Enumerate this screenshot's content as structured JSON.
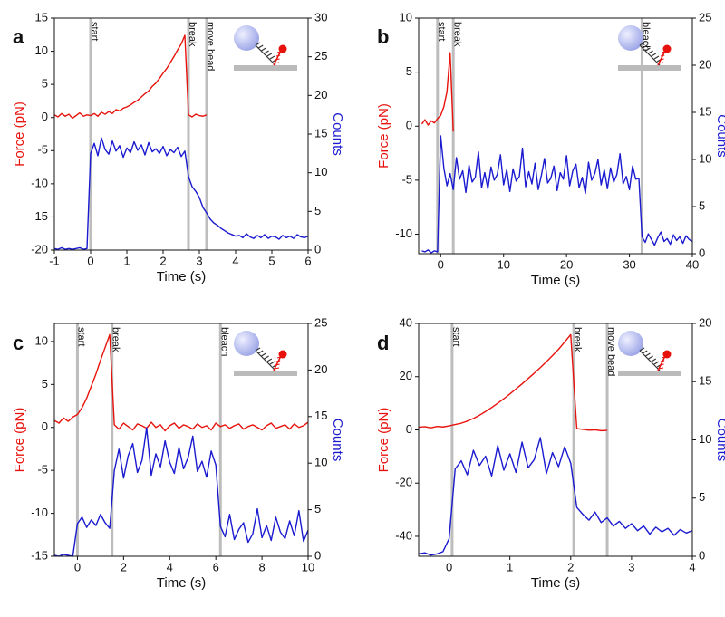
{
  "chart_data": [
    {
      "type": "line",
      "panel_label": "a",
      "xlabel": "Time (s)",
      "ylabel": "Force (pN)",
      "y2label": "Counts",
      "xlim": [
        -1,
        6
      ],
      "xticks": [
        -1,
        0,
        1,
        2,
        3,
        4,
        5,
        6
      ],
      "ylim": [
        -20,
        15
      ],
      "yticks": [
        -20,
        -15,
        -10,
        -5,
        0,
        5,
        10,
        15
      ],
      "y2lim": [
        0,
        30
      ],
      "y2ticks": [
        0,
        5,
        10,
        15,
        20,
        25,
        30
      ],
      "annotations": [
        {
          "x": 0,
          "text": "start"
        },
        {
          "x": 2.7,
          "text": "break"
        },
        {
          "x": 3.2,
          "text": "move bead"
        }
      ],
      "x": [
        -1,
        -0.9,
        -0.8,
        -0.7,
        -0.6,
        -0.5,
        -0.4,
        -0.3,
        -0.2,
        -0.1,
        0,
        0.1,
        0.2,
        0.3,
        0.4,
        0.5,
        0.6,
        0.7,
        0.8,
        0.9,
        1,
        1.1,
        1.2,
        1.3,
        1.4,
        1.5,
        1.6,
        1.7,
        1.8,
        1.9,
        2,
        2.1,
        2.2,
        2.3,
        2.4,
        2.5,
        2.6,
        2.7,
        2.8,
        2.9,
        3,
        3.1,
        3.2,
        3.3,
        3.4,
        3.5,
        3.6,
        3.7,
        3.8,
        3.9,
        4,
        4.1,
        4.2,
        4.3,
        4.4,
        4.5,
        4.6,
        4.7,
        4.8,
        4.9,
        5,
        5.1,
        5.2,
        5.3,
        5.4,
        5.5,
        5.6,
        5.7,
        5.8,
        5.9,
        6
      ],
      "series": [
        {
          "name": "Force",
          "color": "#e8120c",
          "axis": "y",
          "values": [
            0.4,
            0.1,
            0.6,
            0.2,
            0.5,
            -0.1,
            0.3,
            0.7,
            0.2,
            0.4,
            0.3,
            0.6,
            0.2,
            0.8,
            0.5,
            0.9,
            0.6,
            1.2,
            1.0,
            1.4,
            1.6,
            1.9,
            2.3,
            2.6,
            3.1,
            3.6,
            4.0,
            4.7,
            5.2,
            5.9,
            6.7,
            7.4,
            8.3,
            9.2,
            10.2,
            11.1,
            12.4,
            0.4,
            0.1,
            0.5,
            0.3,
            0.2,
            0.4,
            null,
            null,
            null,
            null,
            null,
            null,
            null,
            null,
            null,
            null,
            null,
            null,
            null,
            null,
            null,
            null,
            null,
            null,
            null,
            null,
            null,
            null,
            null,
            null,
            null,
            null,
            null,
            null
          ]
        },
        {
          "name": "Counts",
          "color": "#1a1ad0",
          "axis": "y2",
          "values": [
            0.2,
            0.1,
            0.3,
            0.1,
            0.2,
            0.1,
            0.2,
            0.3,
            0.1,
            0.2,
            12.5,
            13.8,
            12.2,
            14.5,
            13.0,
            12.4,
            14.1,
            12.8,
            13.5,
            12.0,
            13.2,
            12.6,
            14.0,
            12.9,
            13.6,
            12.3,
            13.9,
            12.7,
            13.1,
            12.5,
            13.4,
            12.2,
            13.0,
            12.6,
            13.3,
            12.1,
            12.8,
            9.5,
            8.2,
            7.6,
            6.8,
            5.5,
            4.8,
            4.0,
            3.5,
            3.2,
            2.8,
            2.5,
            2.2,
            2.0,
            1.8,
            1.9,
            1.6,
            2.1,
            1.7,
            1.5,
            1.9,
            1.6,
            2.0,
            1.5,
            1.8,
            1.7,
            1.4,
            1.9,
            1.6,
            1.8,
            1.5,
            2.0,
            1.7,
            1.6,
            1.8
          ]
        }
      ]
    },
    {
      "type": "line",
      "panel_label": "b",
      "xlabel": "Time (s)",
      "ylabel": "Force (pN)",
      "y2label": "Counts",
      "xlim": [
        -3.5,
        40
      ],
      "xticks": [
        0,
        10,
        20,
        30,
        40
      ],
      "ylim": [
        -11.8,
        10
      ],
      "yticks": [
        -10,
        -5,
        0,
        5,
        10
      ],
      "y2lim": [
        0,
        25
      ],
      "y2ticks": [
        0,
        5,
        10,
        15,
        20,
        25
      ],
      "annotations": [
        {
          "x": -0.5,
          "text": "start"
        },
        {
          "x": 2,
          "text": "break"
        },
        {
          "x": 32,
          "text": "bleach"
        }
      ],
      "x": [
        -3,
        -2.5,
        -2,
        -1.5,
        -1,
        -0.5,
        0,
        0.5,
        1,
        1.5,
        2,
        2.5,
        3,
        3.5,
        4,
        4.5,
        5,
        5.5,
        6,
        6.5,
        7,
        7.5,
        8,
        8.5,
        9,
        9.5,
        10,
        10.5,
        11,
        11.5,
        12,
        12.5,
        13,
        13.5,
        14,
        14.5,
        15,
        15.5,
        16,
        16.5,
        17,
        17.5,
        18,
        18.5,
        19,
        19.5,
        20,
        20.5,
        21,
        21.5,
        22,
        22.5,
        23,
        23.5,
        24,
        24.5,
        25,
        25.5,
        26,
        26.5,
        27,
        27.5,
        28,
        28.5,
        29,
        29.5,
        30,
        30.5,
        31,
        31.5,
        32,
        32.5,
        33,
        33.5,
        34,
        34.5,
        35,
        35.5,
        36,
        36.5,
        37,
        37.5,
        38,
        38.5,
        39,
        39.5,
        40
      ],
      "series": [
        {
          "name": "Force",
          "color": "#e8120c",
          "axis": "y",
          "values": [
            0.2,
            0.6,
            0.1,
            0.5,
            0.3,
            0.7,
            1.0,
            1.8,
            3.2,
            6.8,
            -0.5,
            null,
            null,
            null,
            null,
            null,
            null,
            null,
            null,
            null,
            null,
            null,
            null,
            null,
            null,
            null,
            null,
            null,
            null,
            null,
            null,
            null,
            null,
            null,
            null,
            null,
            null,
            null,
            null,
            null,
            null,
            null,
            null,
            null,
            null,
            null,
            null,
            null,
            null,
            null,
            null,
            null,
            null,
            null,
            null,
            null,
            null,
            null,
            null,
            null,
            null,
            null,
            null,
            null,
            null,
            null,
            null,
            null,
            null,
            null,
            null,
            null,
            null,
            null,
            null,
            null,
            null,
            null,
            null,
            null,
            null,
            null,
            null,
            null,
            null,
            null,
            null
          ]
        },
        {
          "name": "Counts",
          "color": "#1a1ad0",
          "axis": "y2",
          "values": [
            0.3,
            0.2,
            0.4,
            0.1,
            0.3,
            0.2,
            12.5,
            9.1,
            7.2,
            8.5,
            6.8,
            10.2,
            7.9,
            8.8,
            6.5,
            9.4,
            7.6,
            8.1,
            10.8,
            7.0,
            8.6,
            6.9,
            9.2,
            7.8,
            8.4,
            10.5,
            7.3,
            8.9,
            6.6,
            9.0,
            7.7,
            8.2,
            11.2,
            7.1,
            8.7,
            7.4,
            9.6,
            6.8,
            8.3,
            10.1,
            7.5,
            8.0,
            9.3,
            6.7,
            8.6,
            7.9,
            10.4,
            7.2,
            8.8,
            9.5,
            7.0,
            8.1,
            6.4,
            9.7,
            7.8,
            8.5,
            10.0,
            7.3,
            8.9,
            6.9,
            9.1,
            7.6,
            8.4,
            10.6,
            7.4,
            8.2,
            6.8,
            9.3,
            7.9,
            8.0,
            1.8,
            1.2,
            2.1,
            1.5,
            0.9,
            1.7,
            2.3,
            1.3,
            1.6,
            1.0,
            2.0,
            1.4,
            1.8,
            1.1,
            1.9,
            1.5,
            1.3
          ]
        }
      ]
    },
    {
      "type": "line",
      "panel_label": "c",
      "xlabel": "Time (s)",
      "ylabel": "Force (pN)",
      "y2label": "Counts",
      "xlim": [
        -1,
        10
      ],
      "xticks": [
        0,
        2,
        4,
        6,
        8,
        10
      ],
      "ylim": [
        -15,
        12.1
      ],
      "yticks": [
        -15,
        -10,
        -5,
        0,
        5,
        10
      ],
      "y2lim": [
        0,
        25
      ],
      "y2ticks": [
        0,
        5,
        10,
        15,
        20,
        25
      ],
      "annotations": [
        {
          "x": 0,
          "text": "start"
        },
        {
          "x": 1.5,
          "text": "break"
        },
        {
          "x": 6.2,
          "text": "bleach"
        }
      ],
      "x": [
        -1,
        -0.8,
        -0.6,
        -0.4,
        -0.2,
        0,
        0.2,
        0.4,
        0.6,
        0.8,
        1,
        1.2,
        1.4,
        1.6,
        1.8,
        2,
        2.2,
        2.4,
        2.6,
        2.8,
        3,
        3.2,
        3.4,
        3.6,
        3.8,
        4,
        4.2,
        4.4,
        4.6,
        4.8,
        5,
        5.2,
        5.4,
        5.6,
        5.8,
        6,
        6.2,
        6.4,
        6.6,
        6.8,
        7,
        7.2,
        7.4,
        7.6,
        7.8,
        8,
        8.2,
        8.4,
        8.6,
        8.8,
        9,
        9.2,
        9.4,
        9.6,
        9.8,
        10
      ],
      "series": [
        {
          "name": "Force",
          "color": "#e8120c",
          "axis": "y",
          "values": [
            0.8,
            0.5,
            1.1,
            0.7,
            1.2,
            1.5,
            2.3,
            3.4,
            4.8,
            6.2,
            7.8,
            9.3,
            10.8,
            0.3,
            -0.2,
            0.5,
            0.1,
            -0.3,
            0.4,
            0.2,
            -0.1,
            0.6,
            0.0,
            0.3,
            -0.4,
            0.2,
            0.5,
            -0.1,
            0.3,
            0.1,
            -0.2,
            0.4,
            0.0,
            0.2,
            -0.3,
            0.5,
            0.1,
            0.3,
            -0.1,
            0.2,
            0.4,
            -0.2,
            0.1,
            0.3,
            0.0,
            -0.3,
            0.2,
            0.5,
            -0.1,
            0.1,
            0.3,
            -0.2,
            0.4,
            0.0,
            0.2,
            0.6
          ]
        },
        {
          "name": "Counts",
          "color": "#1a1ad0",
          "axis": "y2",
          "values": [
            0.1,
            0.0,
            0.2,
            0.1,
            0.0,
            3.5,
            4.2,
            3.1,
            3.9,
            3.3,
            4.5,
            3.6,
            3.0,
            9.2,
            11.5,
            8.4,
            10.8,
            12.1,
            9.0,
            10.3,
            13.8,
            8.7,
            11.0,
            9.6,
            12.4,
            10.1,
            8.9,
            11.7,
            9.4,
            10.6,
            12.9,
            9.1,
            10.2,
            8.5,
            11.3,
            9.8,
            3.2,
            2.1,
            4.5,
            1.8,
            2.9,
            3.6,
            1.5,
            2.4,
            5.1,
            2.0,
            3.3,
            1.7,
            4.2,
            2.6,
            1.9,
            3.8,
            2.2,
            4.9,
            1.6,
            2.8
          ]
        }
      ]
    },
    {
      "type": "line",
      "panel_label": "d",
      "xlabel": "Time (s)",
      "ylabel": "Force (pN)",
      "y2label": "Counts",
      "xlim": [
        -0.5,
        4
      ],
      "xticks": [
        0,
        1,
        2,
        3,
        4
      ],
      "ylim": [
        -47.5,
        40
      ],
      "yticks": [
        -40,
        -20,
        0,
        20,
        40
      ],
      "y2lim": [
        0,
        20
      ],
      "y2ticks": [
        0,
        5,
        10,
        15,
        20
      ],
      "annotations": [
        {
          "x": 0.05,
          "text": "start"
        },
        {
          "x": 2.05,
          "text": "break"
        },
        {
          "x": 2.6,
          "text": "move bead"
        }
      ],
      "x": [
        -0.5,
        -0.4,
        -0.3,
        -0.2,
        -0.1,
        0,
        0.1,
        0.2,
        0.3,
        0.4,
        0.5,
        0.6,
        0.7,
        0.8,
        0.9,
        1,
        1.1,
        1.2,
        1.3,
        1.4,
        1.5,
        1.6,
        1.7,
        1.8,
        1.9,
        2,
        2.1,
        2.2,
        2.3,
        2.4,
        2.5,
        2.6,
        2.7,
        2.8,
        2.9,
        3,
        3.1,
        3.2,
        3.3,
        3.4,
        3.5,
        3.6,
        3.7,
        3.8,
        3.9,
        4
      ],
      "series": [
        {
          "name": "Force",
          "color": "#e8120c",
          "axis": "y",
          "values": [
            1.0,
            1.2,
            0.8,
            1.3,
            1.1,
            1.5,
            2.0,
            2.5,
            3.3,
            4.3,
            5.5,
            6.9,
            8.4,
            10.0,
            11.7,
            13.5,
            15.4,
            17.3,
            19.3,
            21.3,
            23.4,
            25.6,
            27.9,
            30.3,
            33.0,
            35.8,
            0.5,
            0.2,
            -0.1,
            0.0,
            -0.3,
            -0.2,
            null,
            null,
            null,
            null,
            null,
            null,
            null,
            null,
            null,
            null,
            null,
            null,
            null,
            null
          ]
        },
        {
          "name": "Counts",
          "color": "#1a1ad0",
          "axis": "y2",
          "values": [
            0.2,
            0.3,
            0.1,
            0.2,
            0.4,
            1.5,
            7.5,
            8.2,
            7.0,
            9.1,
            7.8,
            8.6,
            6.9,
            9.5,
            7.4,
            8.8,
            7.2,
            9.8,
            7.6,
            8.3,
            10.2,
            7.1,
            8.9,
            7.7,
            9.4,
            8.0,
            4.2,
            3.6,
            3.1,
            3.8,
            2.9,
            3.3,
            2.6,
            3.0,
            2.4,
            2.8,
            2.2,
            2.6,
            1.9,
            2.5,
            2.1,
            2.4,
            1.8,
            2.3,
            2.0,
            2.2
          ]
        }
      ]
    }
  ]
}
